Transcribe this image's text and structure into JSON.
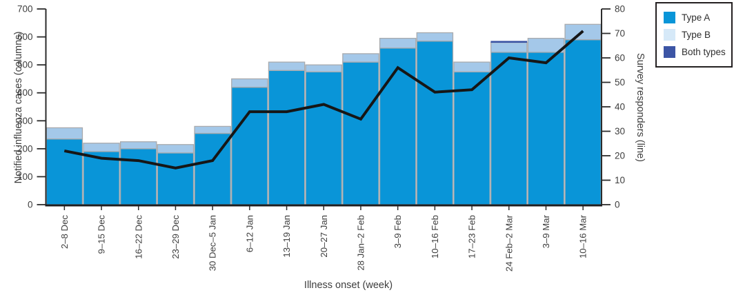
{
  "figure_title": "",
  "legend": {
    "items": [
      {
        "label": "Type A",
        "color": "#0995d8"
      },
      {
        "label": "Type B",
        "color": "#d6e9f8"
      },
      {
        "label": "Both types",
        "color": "#3c55a5"
      }
    ]
  },
  "axes": {
    "left_title": "Notified influenza cases (columns)",
    "right_title": "Survey responders (line)",
    "bottom_title": "Illness onset (week)"
  },
  "chart_data": {
    "type": "combo-stacked-bar-line",
    "categories": [
      "2–8 Dec",
      "9–15 Dec",
      "16–22 Dec",
      "23–29 Dec",
      "30 Dec–5 Jan",
      "6–12 Jan",
      "13–19 Jan",
      "20–27 Jan",
      "28 Jan–2 Feb",
      "3–9 Feb",
      "10–16 Feb",
      "17–23 Feb",
      "24 Feb–2 Mar",
      "3–9 Mar",
      "10–16 Mar"
    ],
    "series": [
      {
        "name": "Type A",
        "type": "bar",
        "axis": "left",
        "color": "#0995d8",
        "values": [
          235,
          190,
          200,
          185,
          255,
          420,
          480,
          475,
          510,
          560,
          585,
          475,
          545,
          545,
          590
        ]
      },
      {
        "name": "Type B",
        "type": "bar",
        "axis": "left",
        "color": "#a4c8e9",
        "values": [
          40,
          30,
          25,
          30,
          25,
          30,
          30,
          25,
          30,
          35,
          30,
          35,
          35,
          50,
          55
        ]
      },
      {
        "name": "Both types",
        "type": "bar",
        "axis": "left",
        "color": "#3c55a5",
        "values": [
          0,
          0,
          0,
          0,
          0,
          0,
          0,
          0,
          0,
          0,
          0,
          0,
          5,
          0,
          0
        ]
      },
      {
        "name": "Survey responders",
        "type": "line",
        "axis": "right",
        "color": "#161616",
        "values": [
          22,
          19,
          18,
          15,
          18,
          38,
          38,
          41,
          35,
          56,
          46,
          47,
          60,
          58,
          71
        ]
      }
    ],
    "left_axis": {
      "label": "Notified influenza cases (columns)",
      "min": 0,
      "max": 700,
      "tick_step": 100,
      "tick_labels": [
        "0",
        "100",
        "200",
        "300",
        "400",
        "500",
        "600",
        "700"
      ]
    },
    "right_axis": {
      "label": "Survey responders (line)",
      "min": 0,
      "max": 80,
      "tick_step": 10,
      "tick_labels": [
        "0",
        "10",
        "20",
        "30",
        "40",
        "50",
        "60",
        "70",
        "80"
      ]
    },
    "x_axis": {
      "label": "Illness onset (week)"
    },
    "style": {
      "bar_border_color": "#a8aaad",
      "axis_color": "#2b2b2b",
      "tick_text_color": "#3d3d3d",
      "legend_border_color": "#231f20"
    }
  }
}
